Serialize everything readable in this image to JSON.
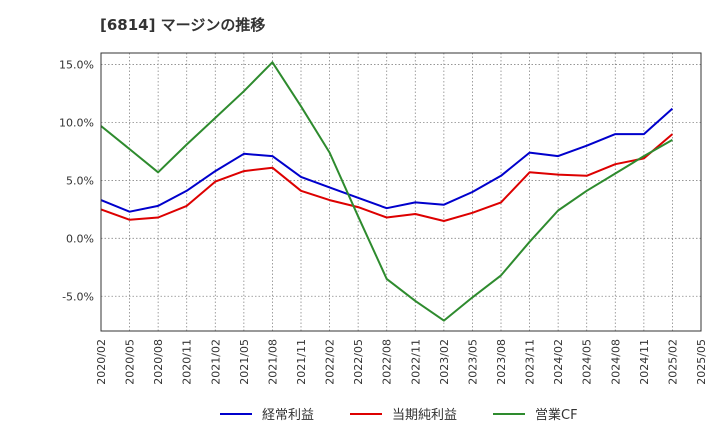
{
  "chart_data": {
    "type": "line",
    "title": "[6814]  マージンの推移",
    "xlabel": "",
    "ylabel": "",
    "y_tick_labels": [
      "15.0%",
      "10.0%",
      "5.0%",
      "0.0%",
      "-5.0%"
    ],
    "y_ticks": [
      15,
      10,
      5,
      0,
      -5
    ],
    "ylim": [
      -8,
      16
    ],
    "grid": true,
    "legend_position": "bottom",
    "categories": [
      "2020/02",
      "2020/05",
      "2020/08",
      "2020/11",
      "2021/02",
      "2021/05",
      "2021/08",
      "2021/11",
      "2022/02",
      "2022/05",
      "2022/08",
      "2022/11",
      "2023/02",
      "2023/05",
      "2023/08",
      "2023/11",
      "2024/02",
      "2024/05",
      "2024/08",
      "2024/11",
      "2025/02",
      "2025/05"
    ],
    "series": [
      {
        "name": "経常利益",
        "color": "#0000cc",
        "values": [
          3.3,
          2.3,
          2.8,
          4.1,
          5.8,
          7.3,
          7.1,
          5.3,
          4.4,
          3.5,
          2.6,
          3.1,
          2.9,
          4.0,
          5.4,
          7.4,
          7.1,
          8.0,
          9.0,
          9.0,
          11.2,
          null
        ]
      },
      {
        "name": "当期純利益",
        "color": "#dd0000",
        "values": [
          2.5,
          1.6,
          1.8,
          2.8,
          4.9,
          5.8,
          6.1,
          4.1,
          3.3,
          2.7,
          1.8,
          2.1,
          1.5,
          2.2,
          3.1,
          5.7,
          5.5,
          5.4,
          6.4,
          6.9,
          9.0,
          null
        ]
      },
      {
        "name": "営業CF",
        "color": "#2e8b2e",
        "values": [
          9.7,
          7.7,
          5.7,
          8.1,
          10.4,
          12.7,
          15.2,
          11.4,
          7.4,
          1.9,
          -3.5,
          -5.4,
          -7.1,
          -5.1,
          -3.2,
          -0.3,
          2.4,
          4.1,
          5.6,
          7.1,
          8.5,
          null
        ]
      }
    ]
  }
}
